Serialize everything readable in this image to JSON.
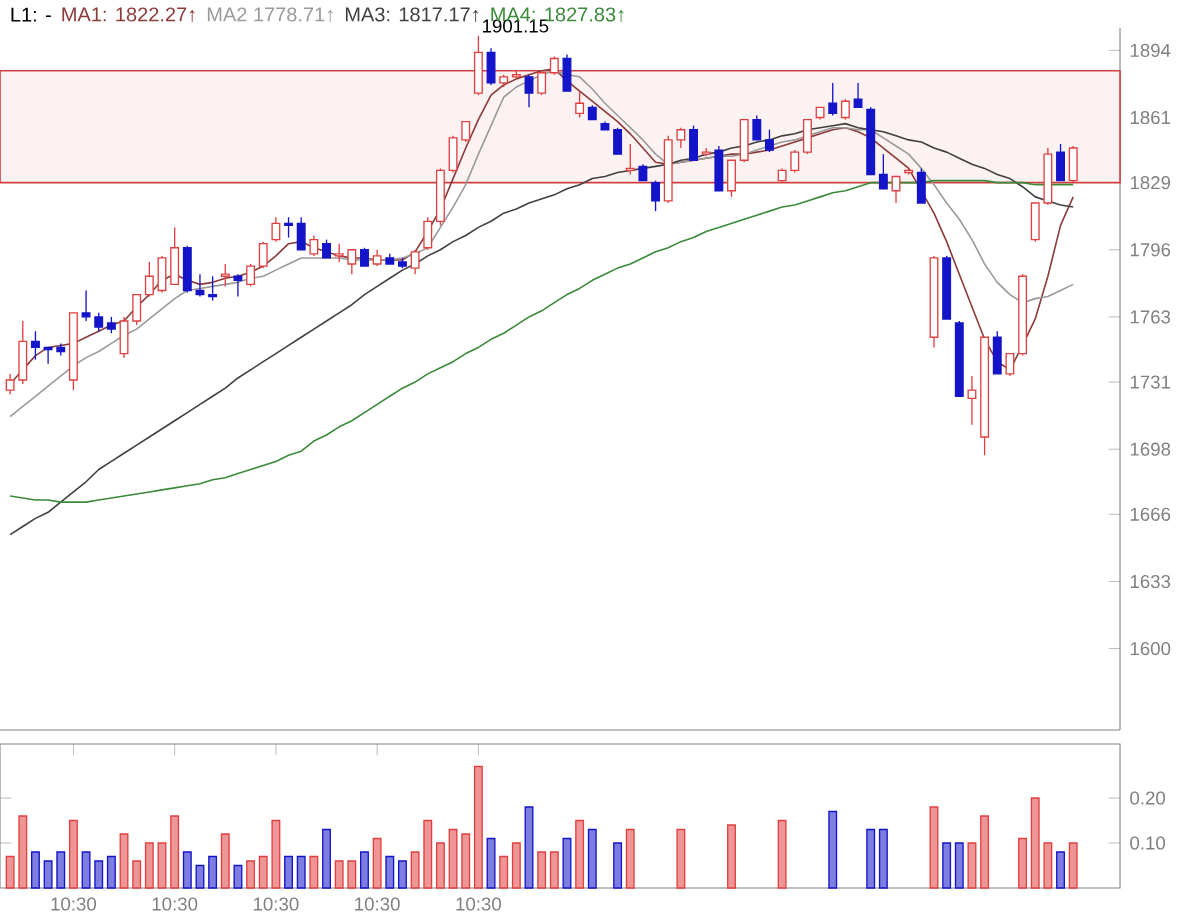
{
  "chart_data": [
    {
      "type": "candlestick",
      "categories": [
        null,
        null,
        null,
        null,
        null,
        null,
        null,
        null,
        null,
        null,
        null,
        null,
        null,
        null,
        null,
        null,
        null,
        null,
        null,
        null,
        null,
        null,
        null,
        null,
        null,
        null,
        null,
        null,
        null,
        null,
        null,
        null,
        null,
        null,
        null,
        null,
        null,
        null,
        null,
        null,
        null,
        null,
        null,
        null,
        null,
        null,
        null,
        null,
        null,
        null,
        null,
        null,
        null,
        null,
        null,
        null,
        null,
        null,
        null,
        null,
        null,
        null,
        null,
        null,
        null,
        null,
        null,
        null,
        null,
        null,
        null,
        null,
        null,
        null,
        null,
        null,
        null,
        null,
        null,
        null,
        null,
        null,
        null,
        null,
        null
      ],
      "ohlc": [
        [
          1727,
          1735,
          1725,
          1732
        ],
        [
          1732,
          1761,
          1730,
          1751
        ],
        [
          1751,
          1756,
          1742,
          1748
        ],
        [
          1748,
          1748,
          1740,
          1747
        ],
        [
          1748,
          1750,
          1744,
          1746
        ],
        [
          1732,
          1765,
          1727,
          1765
        ],
        [
          1765,
          1776,
          1761,
          1763
        ],
        [
          1763,
          1765,
          1756,
          1758
        ],
        [
          1760,
          1763,
          1755,
          1757
        ],
        [
          1745,
          1763,
          1743,
          1761
        ],
        [
          1761,
          1774,
          1759,
          1774
        ],
        [
          1774,
          1790,
          1773,
          1783
        ],
        [
          1776,
          1793,
          1775,
          1792
        ],
        [
          1779,
          1807,
          1779,
          1797
        ],
        [
          1797,
          1798,
          1775,
          1776
        ],
        [
          1776,
          1784,
          1773,
          1774
        ],
        [
          1774,
          1783,
          1771,
          1773
        ],
        [
          1783,
          1789,
          1778,
          1784
        ],
        [
          1783,
          1784,
          1773,
          1781
        ],
        [
          1779,
          1789,
          1778,
          1788
        ],
        [
          1788,
          1800,
          1787,
          1799
        ],
        [
          1801,
          1812,
          1800,
          1809
        ],
        [
          1809,
          1812,
          1802,
          1808
        ],
        [
          1809,
          1812,
          1796,
          1796
        ],
        [
          1794,
          1803,
          1793,
          1801
        ],
        [
          1799,
          1801,
          1792,
          1792
        ],
        [
          1793,
          1799,
          1790,
          1794
        ],
        [
          1789,
          1796,
          1784,
          1796
        ],
        [
          1796,
          1797,
          1788,
          1788
        ],
        [
          1789,
          1796,
          1788,
          1793
        ],
        [
          1792,
          1794,
          1789,
          1789
        ],
        [
          1790,
          1792,
          1787,
          1788
        ],
        [
          1787,
          1796,
          1784,
          1795
        ],
        [
          1797,
          1812,
          1796,
          1810
        ],
        [
          1810,
          1836,
          1808,
          1835
        ],
        [
          1835,
          1852,
          1834,
          1851
        ],
        [
          1850,
          1859,
          1849,
          1859
        ],
        [
          1873,
          1901.15,
          1872,
          1893
        ],
        [
          1893,
          1895,
          1877,
          1878
        ],
        [
          1878,
          1882,
          1876,
          1881
        ],
        [
          1881,
          1884,
          1880,
          1882
        ],
        [
          1881,
          1882,
          1866,
          1873
        ],
        [
          1873,
          1883,
          1872,
          1883
        ],
        [
          1883,
          1891,
          1882,
          1890
        ],
        [
          1890,
          1892,
          1874,
          1874
        ],
        [
          1863,
          1874,
          1861,
          1868
        ],
        [
          1866,
          1867,
          1860,
          1860
        ],
        [
          1858,
          1859,
          1855,
          1855
        ],
        [
          1855,
          1856,
          1843,
          1843
        ],
        [
          1835,
          1848,
          1833,
          1836
        ],
        [
          1837,
          1838,
          1830,
          1830
        ],
        [
          1829,
          1830,
          1815,
          1820
        ],
        [
          1820,
          1852,
          1819,
          1850
        ],
        [
          1850,
          1856,
          1846,
          1855
        ],
        [
          1855,
          1857,
          1840,
          1840
        ],
        [
          1843,
          1846,
          1842,
          1844
        ],
        [
          1845,
          1847,
          1825,
          1825
        ],
        [
          1825,
          1840,
          1822,
          1840
        ],
        [
          1840,
          1860,
          1839,
          1860
        ],
        [
          1860,
          1862,
          1850,
          1850
        ],
        [
          1850,
          1855,
          1844,
          1845
        ],
        [
          1830,
          1836,
          1829,
          1835
        ],
        [
          1835,
          1845,
          1834,
          1844
        ],
        [
          1844,
          1860,
          1843,
          1860
        ],
        [
          1861,
          1866,
          1860,
          1866
        ],
        [
          1868,
          1878,
          1862,
          1863
        ],
        [
          1861,
          1870,
          1860,
          1869
        ],
        [
          1870,
          1878,
          1866,
          1866
        ],
        [
          1865,
          1866,
          1833,
          1833
        ],
        [
          1833,
          1843,
          1826,
          1826
        ],
        [
          1825,
          1832,
          1819,
          1832
        ],
        [
          1834,
          1836,
          1833,
          1835
        ],
        [
          1834,
          1836,
          1819,
          1819
        ],
        [
          1753,
          1793,
          1748,
          1792
        ],
        [
          1792,
          1793,
          1762,
          1762
        ],
        [
          1760,
          1761,
          1724,
          1724
        ],
        [
          1723,
          1734,
          1710,
          1727
        ],
        [
          1704,
          1753,
          1695,
          1753
        ],
        [
          1753,
          1756,
          1735,
          1735
        ],
        [
          1735,
          1745,
          1734,
          1745
        ],
        [
          1745,
          1784,
          1744,
          1783
        ],
        [
          1801,
          1819,
          1800,
          1819
        ],
        [
          1819,
          1846,
          1818,
          1843
        ],
        [
          1844,
          1848,
          1830,
          1830
        ],
        [
          1830,
          1847,
          1829,
          1846
        ]
      ],
      "series": [
        {
          "name": "MA1: 1822.27↑",
          "type": "line",
          "color": "#8b3a3a",
          "values": [
            1730,
            1737,
            1744,
            1748,
            1749,
            1750,
            1753,
            1756,
            1759,
            1761,
            1768,
            1774,
            1781,
            1784,
            1781,
            1779,
            1780,
            1782,
            1783,
            1785,
            1788,
            1793,
            1799,
            1800,
            1797,
            1795,
            1793,
            1792,
            1792,
            1791,
            1791,
            1791,
            1795,
            1805,
            1816,
            1831,
            1846,
            1860,
            1872,
            1877,
            1880,
            1882,
            1884,
            1885,
            1879,
            1874,
            1869,
            1864,
            1859,
            1853,
            1846,
            1839,
            1838,
            1839,
            1840,
            1841,
            1842,
            1843,
            1843,
            1844,
            1845,
            1847,
            1849,
            1851,
            1853,
            1855,
            1856,
            1854,
            1851,
            1846,
            1841,
            1836,
            1825,
            1814,
            1800,
            1784,
            1768,
            1752,
            1741,
            1737,
            1749,
            1762,
            1783,
            1808,
            1822
          ]
        },
        {
          "name": "MA2 1778.71↑",
          "type": "line",
          "color": "#9a9a9a",
          "values": [
            1714,
            1719,
            1724,
            1729,
            1734,
            1739,
            1743,
            1746,
            1750,
            1754,
            1757,
            1762,
            1767,
            1772,
            1776,
            1777,
            1778,
            1779,
            1780,
            1782,
            1783,
            1786,
            1789,
            1792,
            1792,
            1792,
            1792,
            1791,
            1791,
            1791,
            1791,
            1792,
            1794,
            1797,
            1807,
            1817,
            1828,
            1843,
            1857,
            1871,
            1876,
            1879,
            1882,
            1884,
            1882,
            1881,
            1875,
            1868,
            1862,
            1856,
            1850,
            1843,
            1838,
            1839,
            1840,
            1841,
            1842,
            1842,
            1843,
            1845,
            1847,
            1849,
            1850,
            1852,
            1854,
            1856,
            1856,
            1855,
            1855,
            1851,
            1847,
            1843,
            1836,
            1828,
            1819,
            1811,
            1801,
            1789,
            1780,
            1774,
            1770,
            1772,
            1773,
            1776,
            1779
          ]
        },
        {
          "name": "MA3: 1817.17↑",
          "type": "line",
          "color": "#404040",
          "values": [
            1656,
            1660,
            1664,
            1667,
            1672,
            1677,
            1682,
            1688,
            1692,
            1696,
            1700,
            1704,
            1708,
            1712,
            1716,
            1720,
            1724,
            1728,
            1733,
            1737,
            1741,
            1745,
            1749,
            1753,
            1757,
            1761,
            1765,
            1769,
            1774,
            1778,
            1782,
            1786,
            1789,
            1793,
            1796,
            1800,
            1803,
            1807,
            1810,
            1814,
            1816,
            1819,
            1821,
            1823,
            1826,
            1828,
            1831,
            1832,
            1834,
            1835,
            1836,
            1837,
            1838,
            1840,
            1841,
            1843,
            1844,
            1846,
            1847,
            1849,
            1850,
            1852,
            1853,
            1855,
            1856,
            1857,
            1858,
            1856,
            1855,
            1854,
            1852,
            1850,
            1849,
            1846,
            1844,
            1841,
            1838,
            1836,
            1833,
            1831,
            1827,
            1822,
            1820,
            1818,
            1817
          ]
        },
        {
          "name": "MA4: 1827.83↑",
          "type": "line",
          "color": "#3a8a3a",
          "values": [
            1675,
            1674,
            1673,
            1673,
            1672,
            1672,
            1672,
            1673,
            1674,
            1675,
            1676,
            1677,
            1678,
            1679,
            1680,
            1681,
            1683,
            1684,
            1686,
            1688,
            1690,
            1692,
            1695,
            1697,
            1702,
            1705,
            1709,
            1712,
            1716,
            1720,
            1724,
            1728,
            1731,
            1735,
            1738,
            1741,
            1745,
            1748,
            1752,
            1755,
            1759,
            1763,
            1766,
            1770,
            1774,
            1777,
            1781,
            1784,
            1787,
            1789,
            1792,
            1795,
            1797,
            1800,
            1802,
            1805,
            1807,
            1809,
            1811,
            1813,
            1815,
            1817,
            1818,
            1820,
            1822,
            1824,
            1825,
            1827,
            1829,
            1829,
            1829,
            1829,
            1829,
            1830,
            1830,
            1830,
            1830,
            1830,
            1829,
            1829,
            1829,
            1828,
            1828,
            1828,
            1828
          ]
        }
      ],
      "ylim": [
        1560,
        1905
      ],
      "yticks": [
        1600,
        1633,
        1666,
        1698,
        1731,
        1763,
        1796,
        1829,
        1861,
        1894
      ],
      "tick_labels": "y",
      "legend": "top left",
      "bands": [
        {
          "axis": "y",
          "from": 1829,
          "to": 1884,
          "color": "#d04040"
        }
      ],
      "annotations": [
        "L1: -",
        "1901.15"
      ]
    },
    {
      "type": "bar",
      "categories": [
        null,
        null,
        null,
        null,
        null,
        "10:30",
        null,
        null,
        null,
        null,
        null,
        null,
        null,
        "10:30",
        null,
        null,
        null,
        null,
        null,
        null,
        null,
        "10:30",
        null,
        null,
        null,
        null,
        null,
        null,
        null,
        "10:30",
        null,
        null,
        null,
        null,
        null,
        null,
        null,
        "10:30",
        null,
        null,
        null,
        null,
        null,
        null,
        null,
        null,
        null,
        null,
        null,
        null,
        null,
        null,
        null,
        null,
        null,
        null,
        null,
        null,
        null,
        null,
        null,
        null,
        null,
        null,
        null,
        null,
        null,
        null,
        null,
        null,
        null,
        null,
        null,
        null,
        null,
        null,
        null,
        null,
        null,
        null,
        null,
        null,
        null,
        null,
        null
      ],
      "values": [
        0.07,
        0.16,
        0.08,
        0.06,
        0.08,
        0.15,
        0.08,
        0.06,
        0.07,
        0.12,
        0.06,
        0.1,
        0.1,
        0.16,
        0.08,
        0.05,
        0.07,
        0.12,
        0.05,
        0.06,
        0.07,
        0.15,
        0.07,
        0.07,
        0.07,
        0.13,
        0.06,
        0.06,
        0.08,
        0.11,
        0.07,
        0.06,
        0.08,
        0.15,
        0.1,
        0.13,
        0.12,
        0.27,
        0.11,
        0.07,
        0.1,
        0.18,
        0.08,
        0.08,
        0.11,
        0.15,
        0.13,
        null,
        0.1,
        0.13,
        null,
        null,
        null,
        0.13,
        null,
        null,
        null,
        0.14,
        null,
        null,
        null,
        0.15,
        null,
        null,
        null,
        0.17,
        null,
        null,
        0.13,
        0.13,
        null,
        null,
        null,
        0.18,
        0.1,
        0.1,
        0.1,
        0.16,
        null,
        null,
        0.11,
        0.2,
        0.1,
        0.08,
        0.1
      ],
      "colors": [
        "#e04040",
        "#e04040",
        "#1414c8",
        "#1414c8",
        "#1414c8",
        "#e04040",
        "#1414c8",
        "#1414c8",
        "#1414c8",
        "#e04040",
        "#e04040",
        "#e04040",
        "#e04040",
        "#e04040",
        "#1414c8",
        "#1414c8",
        "#1414c8",
        "#e04040",
        "#1414c8",
        "#e04040",
        "#e04040",
        "#e04040",
        "#1414c8",
        "#1414c8",
        "#e04040",
        "#1414c8",
        "#e04040",
        "#e04040",
        "#1414c8",
        "#e04040",
        "#1414c8",
        "#1414c8",
        "#e04040",
        "#e04040",
        "#e04040",
        "#e04040",
        "#e04040",
        "#e04040",
        "#1414c8",
        "#e04040",
        "#e04040",
        "#1414c8",
        "#e04040",
        "#e04040",
        "#1414c8",
        "#e04040",
        "#1414c8",
        "#1414c8",
        "#1414c8",
        "#e04040",
        "#1414c8",
        "#1414c8",
        "#e04040",
        "#e04040",
        "#1414c8",
        "#e04040",
        "#1414c8",
        "#e04040",
        "#e04040",
        "#1414c8",
        "#1414c8",
        "#e04040",
        "#e04040",
        "#e04040",
        "#e04040",
        "#1414c8",
        "#e04040",
        "#1414c8",
        "#1414c8",
        "#1414c8",
        "#e04040",
        "#e04040",
        "#1414c8",
        "#e04040",
        "#1414c8",
        "#1414c8",
        "#e04040",
        "#e04040",
        "#1414c8",
        "#e04040",
        "#e04040",
        "#e04040",
        "#e04040",
        "#1414c8",
        "#e04040"
      ],
      "ylim": [
        0,
        0.32
      ],
      "yticks": [
        {
          "value": 0.1,
          "label": "0.10"
        },
        {
          "value": 0.2,
          "label": "0.20"
        }
      ]
    }
  ]
}
